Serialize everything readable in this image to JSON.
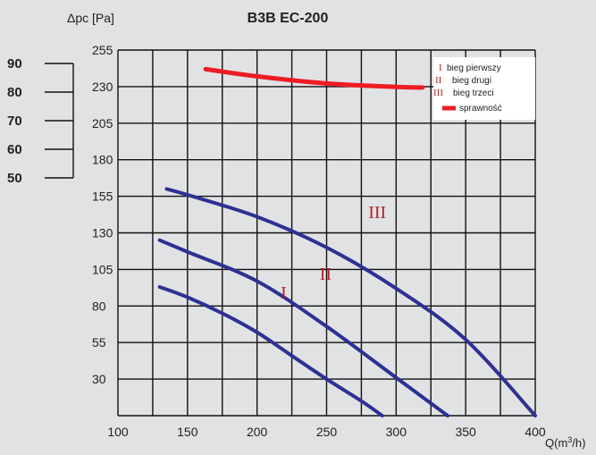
{
  "chart_data": {
    "type": "line",
    "title": "B3B EC-200",
    "ylabel": "Δpc [Pa]",
    "xlabel": "Q(m³/h)",
    "xlim": [
      100,
      400
    ],
    "ylim": [
      5,
      255
    ],
    "x_ticks": [
      100,
      150,
      200,
      250,
      300,
      350,
      400
    ],
    "y_ticks": [
      30,
      55,
      80,
      105,
      130,
      155,
      180,
      205,
      230,
      255
    ],
    "efficiency_axis": {
      "ticks": [
        90,
        80,
        70,
        60,
        50
      ],
      "range": [
        45,
        95
      ]
    },
    "grid": true,
    "legend_position": "top-right",
    "series": [
      {
        "name": "bieg pierwszy",
        "marker": "I",
        "color": "#2e3192",
        "x": [
          130,
          150,
          175,
          200,
          225,
          250,
          275,
          290
        ],
        "y": [
          93,
          86,
          75,
          62,
          46,
          30,
          15,
          5
        ]
      },
      {
        "name": "bieg drugi",
        "marker": "II",
        "color": "#2e3192",
        "x": [
          130,
          150,
          200,
          250,
          300,
          337
        ],
        "y": [
          125,
          117,
          97,
          66,
          31,
          5
        ]
      },
      {
        "name": "bieg trzeci",
        "marker": "III",
        "color": "#2e3192",
        "x": [
          135,
          150,
          200,
          250,
          300,
          350,
          400
        ],
        "y": [
          160,
          156,
          141,
          120,
          92,
          57,
          5
        ]
      },
      {
        "name": "sprawność",
        "marker": "",
        "color": "#ee1c24",
        "axis": "efficiency",
        "x": [
          163,
          200,
          250,
          300,
          319
        ],
        "y": [
          88,
          85.5,
          83,
          81.8,
          81.6
        ]
      }
    ],
    "curve_labels": [
      {
        "text": "I",
        "x": 217,
        "y": 85
      },
      {
        "text": "II",
        "x": 245,
        "y": 98
      },
      {
        "text": "III",
        "x": 280,
        "y": 140
      }
    ]
  }
}
